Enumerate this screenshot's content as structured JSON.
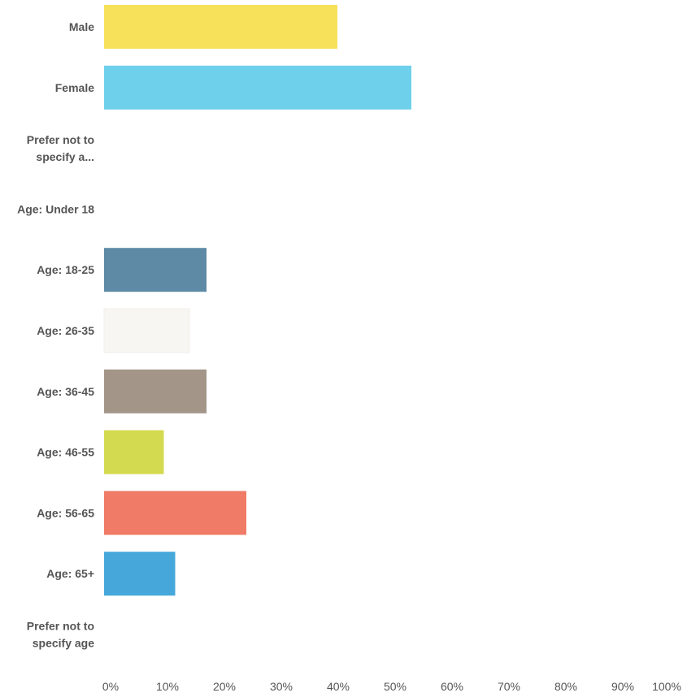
{
  "chart_data": {
    "type": "bar",
    "orientation": "horizontal",
    "categories": [
      "Male",
      "Female",
      "Prefer not to specify a...",
      "Age: Under 18",
      "Age: 18-25",
      "Age: 26-35",
      "Age: 36-45",
      "Age: 46-55",
      "Age: 56-65",
      "Age: 65+",
      "Prefer not to specify age"
    ],
    "category_lines": [
      [
        "Male"
      ],
      [
        "Female"
      ],
      [
        "Prefer not to",
        "specify a..."
      ],
      [
        "Age: Under 18"
      ],
      [
        "Age: 18-25"
      ],
      [
        "Age: 26-35"
      ],
      [
        "Age: 36-45"
      ],
      [
        "Age: 46-55"
      ],
      [
        "Age: 56-65"
      ],
      [
        "Age: 65+"
      ],
      [
        "Prefer not to",
        "specify age"
      ]
    ],
    "values": [
      41,
      54,
      0,
      0,
      18,
      15,
      18,
      10.5,
      25,
      12.5,
      0
    ],
    "colors": [
      "#f7e15a",
      "#6fd0ec",
      "#cccccc",
      "#cccccc",
      "#5e8aa6",
      "#f7f6f2",
      "#a39689",
      "#d4da50",
      "#f07b66",
      "#46a8da",
      "#cccccc"
    ],
    "x_ticks": [
      "0%",
      "10%",
      "20%",
      "30%",
      "40%",
      "50%",
      "60%",
      "70%",
      "80%",
      "90%",
      "100%"
    ],
    "xlim": [
      0,
      100
    ],
    "unit": "%",
    "grid": false,
    "legend": "none",
    "title": "",
    "xlabel": "",
    "ylabel": ""
  }
}
